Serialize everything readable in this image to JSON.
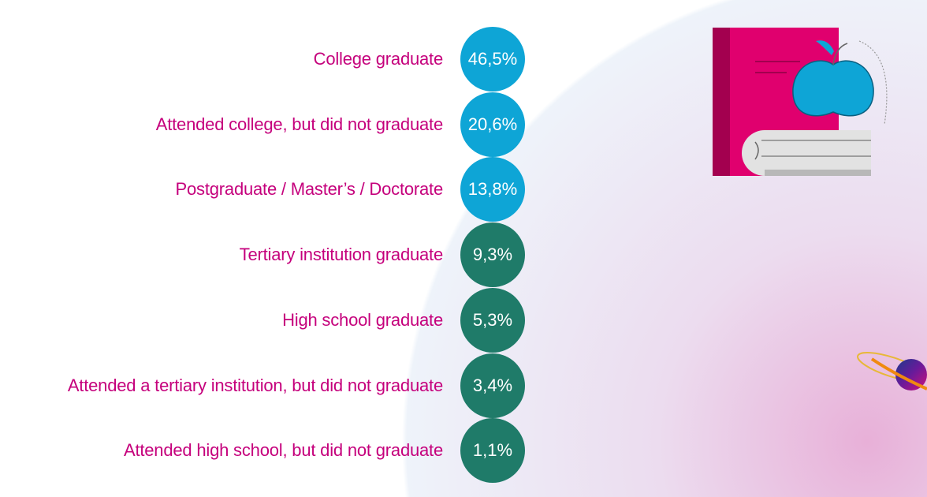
{
  "chart_data": {
    "type": "table",
    "categories": [
      "College graduate",
      "Attended college, but did not graduate",
      "Postgraduate / Master’s / Doctorate",
      "Tertiary institution graduate",
      "High school graduate",
      "Attended a tertiary institution, but did not graduate",
      "Attended high school, but did not graduate"
    ],
    "values": [
      46.5,
      20.6,
      13.8,
      9.3,
      5.3,
      3.4,
      1.1
    ],
    "value_labels": [
      "46,5%",
      "20,6%",
      "13,8%",
      "9,3%",
      "5,3%",
      "3,4%",
      "1,1%"
    ],
    "colors": [
      "#0ea5d6",
      "#0ea5d6",
      "#0ea5d6",
      "#1f7b69",
      "#1f7b69",
      "#1f7b69",
      "#1f7b69"
    ],
    "label_color": "#c5007c"
  },
  "icons": [
    "book-apple-icon",
    "planet-icon"
  ]
}
